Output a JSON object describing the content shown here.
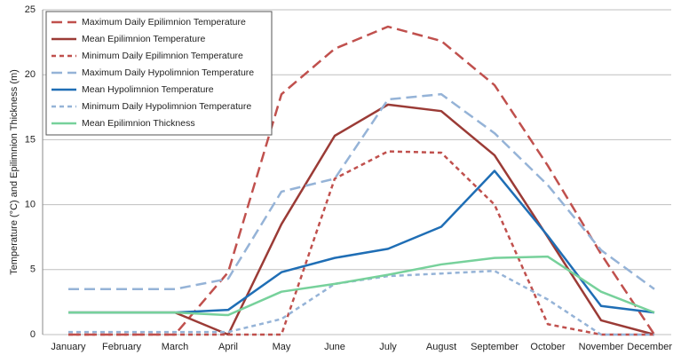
{
  "chart_data": {
    "type": "line",
    "y_label": "Temperature (°C) and Epilimnion Thickness (m)",
    "categories": [
      "January",
      "February",
      "March",
      "April",
      "May",
      "June",
      "July",
      "August",
      "September",
      "October",
      "November",
      "December"
    ],
    "ylim": [
      0,
      25
    ],
    "yticks": [
      0,
      5,
      10,
      15,
      20,
      25
    ],
    "grid": true,
    "legend": "top-left",
    "series": [
      {
        "name": "Maximum Daily Epilimnion Temperature",
        "color": "#c0504d",
        "style": "dashed",
        "values": [
          0,
          0,
          0,
          4.8,
          18.5,
          22,
          23.7,
          22.6,
          19.2,
          13,
          6.2,
          0
        ]
      },
      {
        "name": "Mean Epilimnion Temperature",
        "color": "#9b3b36",
        "style": "solid",
        "values": [
          1.7,
          1.7,
          1.7,
          0,
          8.5,
          15.3,
          17.7,
          17.2,
          13.8,
          7.5,
          1.1,
          0
        ]
      },
      {
        "name": "Minimum Daily Epilimnion Temperature",
        "color": "#c0504d",
        "style": "dotted",
        "values": [
          0,
          0,
          0,
          0,
          0,
          12,
          14.1,
          14,
          10,
          0.8,
          0,
          0
        ]
      },
      {
        "name": "Maximum Daily Hypolimnion Temperature",
        "color": "#95b3d7",
        "style": "dashed",
        "values": [
          3.5,
          3.5,
          3.5,
          4.3,
          11,
          12,
          18.1,
          18.5,
          15.5,
          11.5,
          6.5,
          3.5
        ]
      },
      {
        "name": "Mean Hypolimnion Temperature",
        "color": "#1f6eb5",
        "style": "solid",
        "values": [
          1.7,
          1.7,
          1.7,
          1.9,
          4.8,
          5.9,
          6.6,
          8.3,
          12.6,
          7.6,
          2.2,
          1.7
        ]
      },
      {
        "name": "Minimum Daily Hypolimnion Temperature",
        "color": "#95b3d7",
        "style": "dotted",
        "values": [
          0.2,
          0.2,
          0.2,
          0.2,
          1.2,
          3.9,
          4.5,
          4.7,
          4.9,
          2.7,
          0,
          0
        ]
      },
      {
        "name": "Mean Epilimnion Thickness",
        "color": "#77d19b",
        "style": "solid",
        "values": [
          1.7,
          1.7,
          1.7,
          1.5,
          3.3,
          3.9,
          4.6,
          5.4,
          5.9,
          6.0,
          3.3,
          1.7
        ]
      }
    ]
  }
}
